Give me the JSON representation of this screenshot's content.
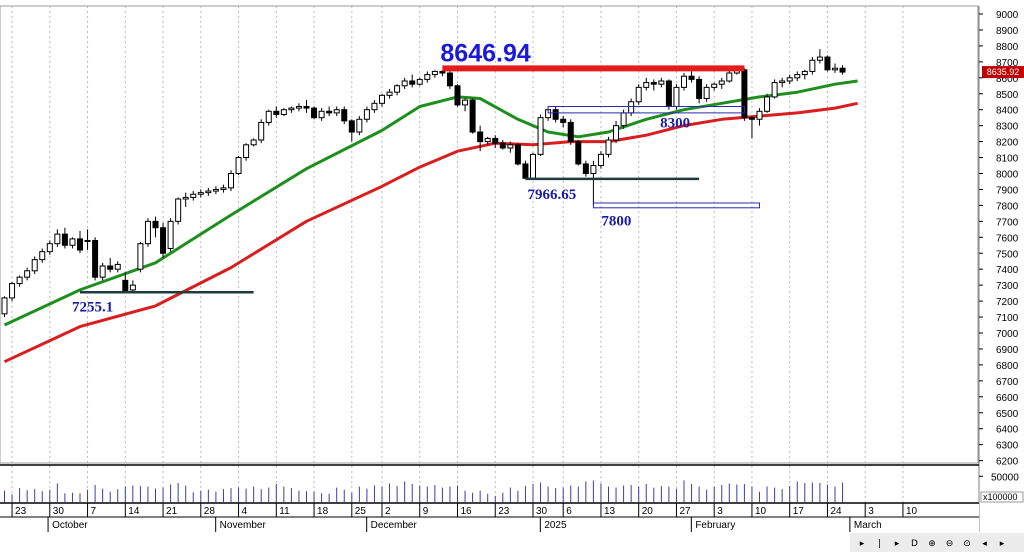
{
  "chart_data": {
    "type": "candlestick",
    "price_axis": {
      "ylim": [
        6100,
        9000
      ],
      "ticks": [
        "9000",
        "8900",
        "8800",
        "8700",
        "8600",
        "8500",
        "8400",
        "8300",
        "8200",
        "8100",
        "8000",
        "7900",
        "7800",
        "7700",
        "7600",
        "7500",
        "7400",
        "7300",
        "7200",
        "7100",
        "7000",
        "6900",
        "6800",
        "6700",
        "6600",
        "6500",
        "6400",
        "6300",
        "6200"
      ]
    },
    "last_price_label": "8635.92",
    "volume_axis": {
      "ylim": [
        0,
        70000
      ],
      "ticks": [
        "50000"
      ],
      "unit": "x100000"
    },
    "x_axis": {
      "day_labels": [
        {
          "i": 1,
          "text": "23"
        },
        {
          "i": 6,
          "text": "30"
        },
        {
          "i": 11,
          "text": "7"
        },
        {
          "i": 16,
          "text": "14"
        },
        {
          "i": 21,
          "text": "21"
        },
        {
          "i": 26,
          "text": "28"
        },
        {
          "i": 31,
          "text": "4"
        },
        {
          "i": 36,
          "text": "11"
        },
        {
          "i": 41,
          "text": "18"
        },
        {
          "i": 46,
          "text": "25"
        },
        {
          "i": 50,
          "text": "2"
        },
        {
          "i": 55,
          "text": "9"
        },
        {
          "i": 60,
          "text": "16"
        },
        {
          "i": 65,
          "text": "23"
        },
        {
          "i": 70,
          "text": "30"
        },
        {
          "i": 74,
          "text": "6"
        },
        {
          "i": 79,
          "text": "13"
        },
        {
          "i": 84,
          "text": "20"
        },
        {
          "i": 89,
          "text": "27"
        },
        {
          "i": 94,
          "text": "3"
        },
        {
          "i": 99,
          "text": "10"
        },
        {
          "i": 104,
          "text": "17"
        },
        {
          "i": 109,
          "text": "24"
        },
        {
          "i": 114,
          "text": "3"
        },
        {
          "i": 119,
          "text": "10"
        }
      ],
      "month_labels": [
        {
          "i": 6.3,
          "text": "October"
        },
        {
          "i": 28.5,
          "text": "November"
        },
        {
          "i": 48.5,
          "text": "December"
        },
        {
          "i": 71.5,
          "text": "2025"
        },
        {
          "i": 91.5,
          "text": "February"
        },
        {
          "i": 112.5,
          "text": "March"
        }
      ]
    },
    "candles": [
      {
        "o": 7120,
        "h": 7230,
        "l": 7100,
        "c": 7220,
        "v": 22000
      },
      {
        "o": 7220,
        "h": 7320,
        "l": 7200,
        "c": 7310,
        "v": 15000
      },
      {
        "o": 7310,
        "h": 7360,
        "l": 7290,
        "c": 7350,
        "v": 27000
      },
      {
        "o": 7350,
        "h": 7410,
        "l": 7330,
        "c": 7390,
        "v": 23000
      },
      {
        "o": 7390,
        "h": 7480,
        "l": 7370,
        "c": 7460,
        "v": 25000
      },
      {
        "o": 7460,
        "h": 7530,
        "l": 7440,
        "c": 7510,
        "v": 21000
      },
      {
        "o": 7510,
        "h": 7580,
        "l": 7490,
        "c": 7560,
        "v": 24000
      },
      {
        "o": 7560,
        "h": 7650,
        "l": 7540,
        "c": 7620,
        "v": 36000
      },
      {
        "o": 7620,
        "h": 7660,
        "l": 7530,
        "c": 7550,
        "v": 17000
      },
      {
        "o": 7550,
        "h": 7600,
        "l": 7530,
        "c": 7590,
        "v": 18000
      },
      {
        "o": 7590,
        "h": 7640,
        "l": 7500,
        "c": 7520,
        "v": 17000
      },
      {
        "o": 7580,
        "h": 7650,
        "l": 7520,
        "c": 7580,
        "v": 24000
      },
      {
        "o": 7580,
        "h": 7600,
        "l": 7330,
        "c": 7350,
        "v": 33000
      },
      {
        "o": 7350,
        "h": 7440,
        "l": 7330,
        "c": 7420,
        "v": 26000
      },
      {
        "o": 7420,
        "h": 7470,
        "l": 7380,
        "c": 7400,
        "v": 20000
      },
      {
        "o": 7400,
        "h": 7450,
        "l": 7380,
        "c": 7430,
        "v": 25000
      },
      {
        "o": 7330,
        "h": 7380,
        "l": 7250,
        "c": 7260,
        "v": 30000
      },
      {
        "o": 7270,
        "h": 7330,
        "l": 7255,
        "c": 7300,
        "v": 32000
      },
      {
        "o": 7400,
        "h": 7570,
        "l": 7380,
        "c": 7560,
        "v": 31000
      },
      {
        "o": 7560,
        "h": 7720,
        "l": 7540,
        "c": 7700,
        "v": 30000
      },
      {
        "o": 7700,
        "h": 7730,
        "l": 7600,
        "c": 7660,
        "v": 26000
      },
      {
        "o": 7660,
        "h": 7690,
        "l": 7470,
        "c": 7500,
        "v": 28000
      },
      {
        "o": 7530,
        "h": 7720,
        "l": 7510,
        "c": 7700,
        "v": 34000
      },
      {
        "o": 7700,
        "h": 7850,
        "l": 7680,
        "c": 7840,
        "v": 37000
      },
      {
        "o": 7840,
        "h": 7880,
        "l": 7790,
        "c": 7850,
        "v": 32000
      },
      {
        "o": 7850,
        "h": 7890,
        "l": 7830,
        "c": 7870,
        "v": 19000
      },
      {
        "o": 7870,
        "h": 7900,
        "l": 7850,
        "c": 7880,
        "v": 22000
      },
      {
        "o": 7880,
        "h": 7910,
        "l": 7860,
        "c": 7890,
        "v": 24000
      },
      {
        "o": 7890,
        "h": 7920,
        "l": 7870,
        "c": 7900,
        "v": 20000
      },
      {
        "o": 7900,
        "h": 7930,
        "l": 7880,
        "c": 7910,
        "v": 25000
      },
      {
        "o": 7910,
        "h": 8020,
        "l": 7890,
        "c": 8000,
        "v": 27000
      },
      {
        "o": 8000,
        "h": 8110,
        "l": 7990,
        "c": 8100,
        "v": 28000
      },
      {
        "o": 8100,
        "h": 8190,
        "l": 8080,
        "c": 8180,
        "v": 26000
      },
      {
        "o": 8180,
        "h": 8220,
        "l": 8170,
        "c": 8210,
        "v": 30000
      },
      {
        "o": 8210,
        "h": 8340,
        "l": 8190,
        "c": 8320,
        "v": 25000
      },
      {
        "o": 8320,
        "h": 8400,
        "l": 8300,
        "c": 8390,
        "v": 28000
      },
      {
        "o": 8390,
        "h": 8420,
        "l": 8350,
        "c": 8370,
        "v": 35000
      },
      {
        "o": 8370,
        "h": 8410,
        "l": 8360,
        "c": 8400,
        "v": 30000
      },
      {
        "o": 8400,
        "h": 8420,
        "l": 8380,
        "c": 8410,
        "v": 27000
      },
      {
        "o": 8410,
        "h": 8440,
        "l": 8390,
        "c": 8420,
        "v": 22000
      },
      {
        "o": 8420,
        "h": 8460,
        "l": 8380,
        "c": 8410,
        "v": 21000
      },
      {
        "o": 8410,
        "h": 8420,
        "l": 8340,
        "c": 8350,
        "v": 20000
      },
      {
        "o": 8350,
        "h": 8410,
        "l": 8330,
        "c": 8390,
        "v": 17000
      },
      {
        "o": 8390,
        "h": 8420,
        "l": 8360,
        "c": 8380,
        "v": 16000
      },
      {
        "o": 8380,
        "h": 8420,
        "l": 8360,
        "c": 8400,
        "v": 28000
      },
      {
        "o": 8400,
        "h": 8420,
        "l": 8310,
        "c": 8330,
        "v": 24000
      },
      {
        "o": 8330,
        "h": 8340,
        "l": 8200,
        "c": 8260,
        "v": 18000
      },
      {
        "o": 8260,
        "h": 8360,
        "l": 8240,
        "c": 8340,
        "v": 30000
      },
      {
        "o": 8340,
        "h": 8420,
        "l": 8320,
        "c": 8400,
        "v": 26000
      },
      {
        "o": 8400,
        "h": 8460,
        "l": 8380,
        "c": 8440,
        "v": 32000
      },
      {
        "o": 8440,
        "h": 8500,
        "l": 8420,
        "c": 8490,
        "v": 30000
      },
      {
        "o": 8490,
        "h": 8530,
        "l": 8470,
        "c": 8510,
        "v": 36000
      },
      {
        "o": 8510,
        "h": 8560,
        "l": 8490,
        "c": 8550,
        "v": 31000
      },
      {
        "o": 8550,
        "h": 8600,
        "l": 8530,
        "c": 8580,
        "v": 40000
      },
      {
        "o": 8580,
        "h": 8620,
        "l": 8540,
        "c": 8560,
        "v": 35000
      },
      {
        "o": 8560,
        "h": 8600,
        "l": 8550,
        "c": 8590,
        "v": 32000
      },
      {
        "o": 8590,
        "h": 8640,
        "l": 8570,
        "c": 8620,
        "v": 30000
      },
      {
        "o": 8620,
        "h": 8646.94,
        "l": 8600,
        "c": 8640,
        "v": 33000
      },
      {
        "o": 8640,
        "h": 8646.94,
        "l": 8610,
        "c": 8630,
        "v": 28000
      },
      {
        "o": 8630,
        "h": 8640,
        "l": 8530,
        "c": 8550,
        "v": 30000
      },
      {
        "o": 8550,
        "h": 8560,
        "l": 8420,
        "c": 8430,
        "v": 32000
      },
      {
        "o": 8430,
        "h": 8470,
        "l": 8390,
        "c": 8460,
        "v": 22000
      },
      {
        "o": 8460,
        "h": 8470,
        "l": 8250,
        "c": 8260,
        "v": 18000
      },
      {
        "o": 8260,
        "h": 8300,
        "l": 8140,
        "c": 8200,
        "v": 22000
      },
      {
        "o": 8200,
        "h": 8230,
        "l": 8180,
        "c": 8220,
        "v": 16000
      },
      {
        "o": 8220,
        "h": 8240,
        "l": 8160,
        "c": 8190,
        "v": 12000
      },
      {
        "o": 8190,
        "h": 8210,
        "l": 8150,
        "c": 8160,
        "v": 18000
      },
      {
        "o": 8160,
        "h": 8200,
        "l": 8130,
        "c": 8180,
        "v": 28000
      },
      {
        "o": 8180,
        "h": 8190,
        "l": 8050,
        "c": 8060,
        "v": 22000
      },
      {
        "o": 8060,
        "h": 8080,
        "l": 7966.65,
        "c": 7970,
        "v": 31000
      },
      {
        "o": 7970,
        "h": 8130,
        "l": 7966.65,
        "c": 8120,
        "v": 35000
      },
      {
        "o": 8120,
        "h": 8370,
        "l": 8110,
        "c": 8350,
        "v": 38000
      },
      {
        "o": 8350,
        "h": 8410,
        "l": 8330,
        "c": 8400,
        "v": 30000
      },
      {
        "o": 8400,
        "h": 8420,
        "l": 8320,
        "c": 8340,
        "v": 27000
      },
      {
        "o": 8340,
        "h": 8360,
        "l": 8290,
        "c": 8320,
        "v": 28000
      },
      {
        "o": 8320,
        "h": 8340,
        "l": 8180,
        "c": 8200,
        "v": 32000
      },
      {
        "o": 8200,
        "h": 8210,
        "l": 8050,
        "c": 8060,
        "v": 30000
      },
      {
        "o": 8060,
        "h": 8080,
        "l": 7980,
        "c": 8000,
        "v": 40000
      },
      {
        "o": 8000,
        "h": 8080,
        "l": 7800,
        "c": 8050,
        "v": 42000
      },
      {
        "o": 8050,
        "h": 8140,
        "l": 8030,
        "c": 8120,
        "v": 36000
      },
      {
        "o": 8120,
        "h": 8230,
        "l": 8100,
        "c": 8210,
        "v": 30000
      },
      {
        "o": 8210,
        "h": 8330,
        "l": 8190,
        "c": 8300,
        "v": 28000
      },
      {
        "o": 8300,
        "h": 8400,
        "l": 8280,
        "c": 8380,
        "v": 32000
      },
      {
        "o": 8380,
        "h": 8470,
        "l": 8360,
        "c": 8450,
        "v": 33000
      },
      {
        "o": 8450,
        "h": 8560,
        "l": 8430,
        "c": 8540,
        "v": 30000
      },
      {
        "o": 8540,
        "h": 8600,
        "l": 8520,
        "c": 8570,
        "v": 35000
      },
      {
        "o": 8570,
        "h": 8590,
        "l": 8520,
        "c": 8560,
        "v": 28000
      },
      {
        "o": 8560,
        "h": 8600,
        "l": 8540,
        "c": 8580,
        "v": 31000
      },
      {
        "o": 8580,
        "h": 8590,
        "l": 8400,
        "c": 8420,
        "v": 30000
      },
      {
        "o": 8420,
        "h": 8560,
        "l": 8400,
        "c": 8540,
        "v": 26000
      },
      {
        "o": 8540,
        "h": 8630,
        "l": 8520,
        "c": 8610,
        "v": 42000
      },
      {
        "o": 8610,
        "h": 8640,
        "l": 8570,
        "c": 8590,
        "v": 35000
      },
      {
        "o": 8590,
        "h": 8610,
        "l": 8440,
        "c": 8470,
        "v": 30000
      },
      {
        "o": 8470,
        "h": 8560,
        "l": 8450,
        "c": 8540,
        "v": 24000
      },
      {
        "o": 8540,
        "h": 8570,
        "l": 8520,
        "c": 8560,
        "v": 30000
      },
      {
        "o": 8560,
        "h": 8600,
        "l": 8530,
        "c": 8580,
        "v": 33000
      },
      {
        "o": 8580,
        "h": 8650,
        "l": 8570,
        "c": 8630,
        "v": 36000
      },
      {
        "o": 8630,
        "h": 8670,
        "l": 8620,
        "c": 8650,
        "v": 34000
      },
      {
        "o": 8650,
        "h": 8660,
        "l": 8330,
        "c": 8350,
        "v": 35000
      },
      {
        "o": 8350,
        "h": 8360,
        "l": 8220,
        "c": 8340,
        "v": 30000
      },
      {
        "o": 8340,
        "h": 8410,
        "l": 8300,
        "c": 8390,
        "v": 20000
      },
      {
        "o": 8390,
        "h": 8500,
        "l": 8380,
        "c": 8480,
        "v": 30000
      },
      {
        "o": 8480,
        "h": 8590,
        "l": 8470,
        "c": 8570,
        "v": 28000
      },
      {
        "o": 8570,
        "h": 8600,
        "l": 8540,
        "c": 8580,
        "v": 25000
      },
      {
        "o": 8580,
        "h": 8620,
        "l": 8560,
        "c": 8600,
        "v": 31000
      },
      {
        "o": 8600,
        "h": 8640,
        "l": 8580,
        "c": 8620,
        "v": 40000
      },
      {
        "o": 8620,
        "h": 8650,
        "l": 8590,
        "c": 8640,
        "v": 37000
      },
      {
        "o": 8640,
        "h": 8730,
        "l": 8620,
        "c": 8710,
        "v": 38000
      },
      {
        "o": 8710,
        "h": 8780,
        "l": 8690,
        "c": 8730,
        "v": 37000
      },
      {
        "o": 8730,
        "h": 8740,
        "l": 8640,
        "c": 8650,
        "v": 34000
      },
      {
        "o": 8650,
        "h": 8690,
        "l": 8630,
        "c": 8660,
        "v": 30000
      },
      {
        "o": 8660,
        "h": 8680,
        "l": 8620,
        "c": 8635.92,
        "v": 38000
      }
    ],
    "moving_averages": [
      {
        "color": "#1e8f1e",
        "points": [
          [
            0,
            7050
          ],
          [
            10,
            7270
          ],
          [
            20,
            7440
          ],
          [
            30,
            7740
          ],
          [
            40,
            8030
          ],
          [
            50,
            8270
          ],
          [
            55,
            8420
          ],
          [
            60,
            8480
          ],
          [
            63,
            8470
          ],
          [
            68,
            8340
          ],
          [
            72,
            8260
          ],
          [
            76,
            8230
          ],
          [
            80,
            8260
          ],
          [
            85,
            8340
          ],
          [
            90,
            8400
          ],
          [
            95,
            8440
          ],
          [
            100,
            8480
          ],
          [
            105,
            8510
          ],
          [
            110,
            8560
          ],
          [
            113,
            8580
          ]
        ]
      },
      {
        "color": "#d81e1e",
        "points": [
          [
            0,
            6820
          ],
          [
            10,
            7040
          ],
          [
            20,
            7170
          ],
          [
            30,
            7410
          ],
          [
            40,
            7700
          ],
          [
            50,
            7920
          ],
          [
            55,
            8040
          ],
          [
            60,
            8140
          ],
          [
            65,
            8190
          ],
          [
            70,
            8180
          ],
          [
            75,
            8200
          ],
          [
            80,
            8200
          ],
          [
            85,
            8240
          ],
          [
            90,
            8300
          ],
          [
            95,
            8340
          ],
          [
            100,
            8360
          ],
          [
            105,
            8380
          ],
          [
            110,
            8410
          ],
          [
            113,
            8440
          ]
        ]
      }
    ],
    "annotations": {
      "resistance": {
        "value": "8646.94",
        "from": 58,
        "to": 98,
        "color": "#e51c1c"
      },
      "support_oct": {
        "value": "7255.1",
        "from": 10,
        "to": 33
      },
      "support_jan": {
        "value": "7966.65",
        "from": 69,
        "to": 92
      },
      "zone_8300": {
        "value": "8300",
        "from": 72,
        "to": 98,
        "top": 8420,
        "bottom": 8380
      },
      "zone_7800": {
        "value": "7800",
        "from": 78,
        "to": 100,
        "top": 7815,
        "bottom": 7785
      }
    }
  },
  "colors": {
    "background": "#ffffff",
    "grid": "#b9b9b9",
    "candle": "#000000",
    "volume": "#3c3ca8",
    "badge": "#c00000",
    "annotation_text": "#1a1aa8"
  }
}
